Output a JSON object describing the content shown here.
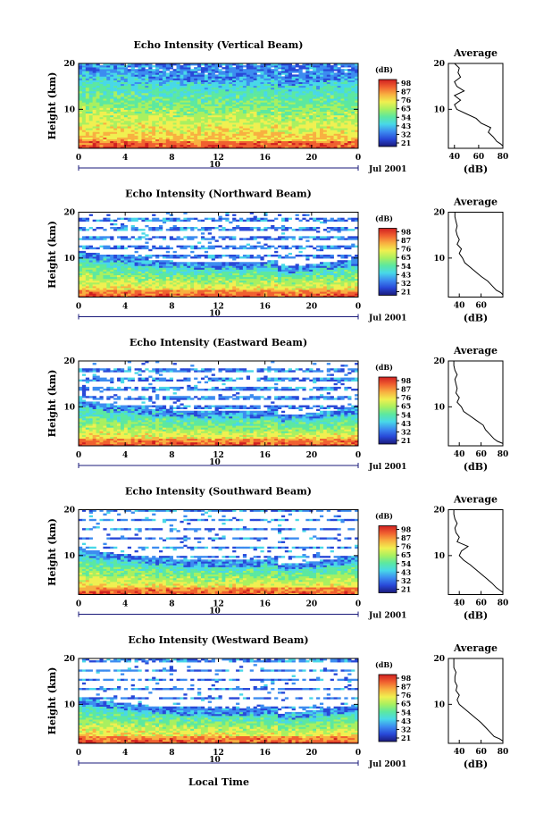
{
  "colorbar": {
    "unit_label": "(dB)",
    "tick_labels": [
      "98",
      "87",
      "76",
      "65",
      "54",
      "43",
      "32",
      "21"
    ],
    "range": [
      21,
      98
    ],
    "colormap": [
      "#1a1a7a",
      "#2848d8",
      "#3c8cf0",
      "#48d8e8",
      "#5ce8a0",
      "#a8f060",
      "#f0f050",
      "#f8b040",
      "#f06030",
      "#d02020"
    ]
  },
  "shared": {
    "x_ticks": [
      "0",
      "4",
      "8",
      "12",
      "16",
      "20",
      "0"
    ],
    "day_marker": "10",
    "month_label": "Jul 2001",
    "y_label": "Height (km)",
    "y_ticks": [
      "20",
      "10"
    ],
    "x_axis_label": "Local Time",
    "profile_title": "Average",
    "profile_xlabel": "(dB)"
  },
  "chart_data": [
    {
      "type": "heatmap",
      "title": "Echo Intensity (Vertical Beam)",
      "xlim": [
        0,
        24
      ],
      "ylim": [
        1.5,
        20
      ],
      "profile": {
        "xticks": [
          "40",
          "60",
          "80"
        ],
        "xlim": [
          35,
          80
        ],
        "height": [
          2,
          2.5,
          3,
          4,
          5,
          6,
          7,
          8,
          9,
          10,
          11,
          12,
          13,
          14,
          15,
          16,
          17,
          18,
          19,
          20
        ],
        "value": [
          80,
          78,
          75,
          72,
          68,
          70,
          62,
          58,
          50,
          42,
          40,
          45,
          40,
          48,
          42,
          40,
          45,
          43,
          44,
          40
        ]
      }
    },
    {
      "type": "heatmap",
      "title": "Echo Intensity (Northward Beam)",
      "xlim": [
        0,
        24
      ],
      "ylim": [
        1.5,
        20
      ],
      "profile": {
        "xticks": [
          "40",
          "60"
        ],
        "xlim": [
          30,
          80
        ],
        "height": [
          2,
          2.5,
          3,
          4,
          5,
          6,
          7,
          8,
          9,
          10,
          11,
          12,
          13,
          14,
          15,
          16,
          17,
          18,
          19,
          20
        ],
        "value": [
          80,
          78,
          74,
          70,
          66,
          60,
          55,
          50,
          45,
          43,
          40,
          42,
          38,
          40,
          38,
          37,
          38,
          37,
          36,
          36
        ]
      }
    },
    {
      "type": "heatmap",
      "title": "Echo Intensity (Eastward Beam)",
      "xlim": [
        0,
        24
      ],
      "ylim": [
        1.5,
        20
      ],
      "profile": {
        "xticks": [
          "40",
          "60",
          "80"
        ],
        "xlim": [
          30,
          80
        ],
        "height": [
          2,
          2.5,
          3,
          4,
          5,
          6,
          7,
          8,
          9,
          10,
          11,
          12,
          13,
          14,
          15,
          16,
          17,
          18,
          19,
          20
        ],
        "value": [
          80,
          75,
          72,
          68,
          64,
          62,
          56,
          50,
          44,
          42,
          38,
          40,
          37,
          38,
          37,
          36,
          38,
          36,
          35,
          35
        ]
      }
    },
    {
      "type": "heatmap",
      "title": "Echo Intensity (Southward Beam)",
      "xlim": [
        0,
        24
      ],
      "ylim": [
        1.5,
        20
      ],
      "profile": {
        "xticks": [
          "40",
          "60",
          "80"
        ],
        "xlim": [
          30,
          80
        ],
        "height": [
          2,
          2.5,
          3,
          4,
          5,
          6,
          7,
          8,
          9,
          10,
          11,
          12,
          13,
          14,
          15,
          16,
          17,
          18,
          19,
          20
        ],
        "value": [
          80,
          77,
          74,
          70,
          65,
          60,
          55,
          50,
          44,
          40,
          42,
          48,
          38,
          40,
          37,
          36,
          38,
          36,
          35,
          35
        ]
      }
    },
    {
      "type": "heatmap",
      "title": "Echo Intensity (Westward Beam)",
      "xlim": [
        0,
        24
      ],
      "ylim": [
        1.5,
        20
      ],
      "profile": {
        "xticks": [
          "40",
          "60",
          "80"
        ],
        "xlim": [
          30,
          80
        ],
        "height": [
          2,
          2.5,
          3,
          4,
          5,
          6,
          7,
          8,
          9,
          10,
          11,
          12,
          13,
          14,
          15,
          16,
          17,
          18,
          19,
          20
        ],
        "value": [
          80,
          77,
          72,
          68,
          64,
          60,
          55,
          50,
          45,
          40,
          38,
          40,
          37,
          38,
          36,
          36,
          37,
          35,
          35,
          35
        ]
      }
    }
  ]
}
